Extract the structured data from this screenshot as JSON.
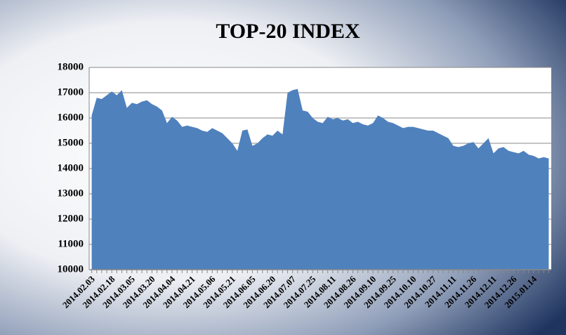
{
  "chart_data": {
    "type": "area",
    "title": "TOP-20 INDEX",
    "color": "#4f81bd",
    "grid": true,
    "ylim": [
      10000,
      18000
    ],
    "yticks": [
      10000,
      11000,
      12000,
      13000,
      14000,
      15000,
      16000,
      17000,
      18000
    ],
    "categories": [
      "2014.02.03",
      null,
      null,
      null,
      "2014.02.18",
      null,
      null,
      null,
      "2014.03.05",
      null,
      null,
      null,
      "2014.03.20",
      null,
      null,
      null,
      "2014.04.04",
      null,
      null,
      null,
      "2014.04.21",
      null,
      null,
      null,
      "2014.05.06",
      null,
      null,
      null,
      "2014.05.21",
      null,
      null,
      null,
      "2014.06.05",
      null,
      null,
      null,
      "2014.06.20",
      null,
      null,
      null,
      "2014.07.07",
      null,
      null,
      null,
      "2014.07.25",
      null,
      null,
      null,
      "2014.08.11",
      null,
      null,
      null,
      "2014.08.26",
      null,
      null,
      null,
      "2014.09.10",
      null,
      null,
      null,
      "2014.09.25",
      null,
      null,
      null,
      "2014.10.10",
      null,
      null,
      null,
      "2014.10.27",
      null,
      null,
      null,
      "2014.11.11",
      null,
      null,
      null,
      "2014.11.26",
      null,
      null,
      null,
      "2014.12.11",
      null,
      null,
      null,
      "2014.12.26",
      null,
      null,
      null,
      "2015.01.14",
      null,
      null,
      null
    ],
    "values": [
      16100,
      16800,
      16750,
      16900,
      17050,
      16900,
      17100,
      16400,
      16600,
      16550,
      16650,
      16700,
      16550,
      16450,
      16300,
      15800,
      16050,
      15900,
      15650,
      15700,
      15650,
      15600,
      15500,
      15450,
      15600,
      15500,
      15400,
      15200,
      15000,
      14700,
      15500,
      15550,
      14900,
      15000,
      15200,
      15350,
      15300,
      15500,
      15350,
      17000,
      17100,
      17150,
      16300,
      16250,
      16000,
      15850,
      15800,
      16050,
      15950,
      16000,
      15900,
      15950,
      15800,
      15850,
      15750,
      15700,
      15800,
      16100,
      16000,
      15850,
      15800,
      15700,
      15600,
      15650,
      15650,
      15600,
      15550,
      15500,
      15500,
      15400,
      15300,
      15200,
      14900,
      14850,
      14900,
      15000,
      15050,
      14800,
      15000,
      15200,
      14600,
      14800,
      14850,
      14700,
      14650,
      14600,
      14700,
      14550,
      14500,
      14400,
      14450,
      14400
    ]
  }
}
